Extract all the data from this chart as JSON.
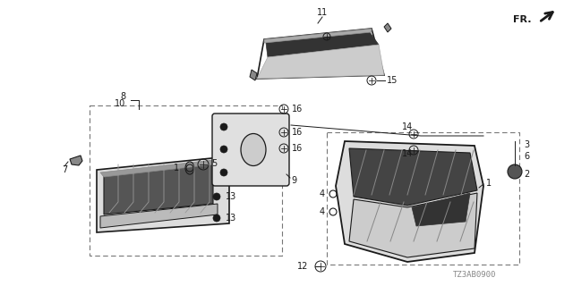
{
  "background_color": "#ffffff",
  "fig_width": 6.4,
  "fig_height": 3.2,
  "dpi": 100,
  "diagram_code": "TZ3AB0900"
}
